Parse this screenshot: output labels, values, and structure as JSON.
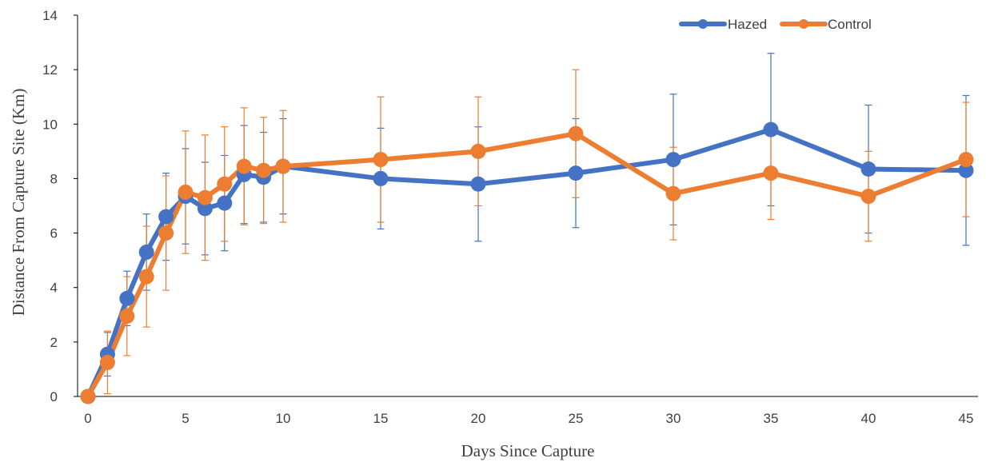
{
  "chart_data": {
    "type": "line",
    "title": "",
    "xlabel": "Days Since Capture",
    "ylabel": "Distance From Capture Site (Km)",
    "xlim": [
      0,
      45
    ],
    "ylim": [
      0,
      14
    ],
    "xticks": [
      0,
      5,
      10,
      15,
      20,
      25,
      30,
      35,
      40,
      45
    ],
    "yticks": [
      0,
      2,
      4,
      6,
      8,
      10,
      12,
      14
    ],
    "grid": false,
    "legend": "top-right",
    "x": [
      0,
      1,
      2,
      3,
      4,
      5,
      6,
      7,
      8,
      9,
      10,
      15,
      20,
      25,
      30,
      35,
      40,
      45
    ],
    "series": [
      {
        "name": "Hazed",
        "color": "#4472C4",
        "values": [
          0,
          1.55,
          3.6,
          5.3,
          6.6,
          7.35,
          6.9,
          7.1,
          8.15,
          8.05,
          8.45,
          8.0,
          7.8,
          8.2,
          8.7,
          9.8,
          8.35,
          8.3
        ],
        "error": [
          0,
          0.8,
          1.0,
          1.4,
          1.6,
          1.75,
          1.7,
          1.75,
          1.8,
          1.65,
          1.75,
          1.85,
          2.1,
          2.0,
          2.4,
          2.8,
          2.35,
          2.75
        ]
      },
      {
        "name": "Control",
        "color": "#ED7D31",
        "values": [
          0,
          1.25,
          2.95,
          4.4,
          6.0,
          7.5,
          7.3,
          7.8,
          8.45,
          8.3,
          8.45,
          8.7,
          9.0,
          9.65,
          7.45,
          8.2,
          7.35,
          8.7
        ],
        "error": [
          0,
          1.15,
          1.45,
          1.85,
          2.1,
          2.25,
          2.3,
          2.1,
          2.15,
          1.95,
          2.05,
          2.3,
          2.0,
          2.35,
          1.7,
          1.7,
          1.65,
          2.1
        ]
      }
    ]
  }
}
